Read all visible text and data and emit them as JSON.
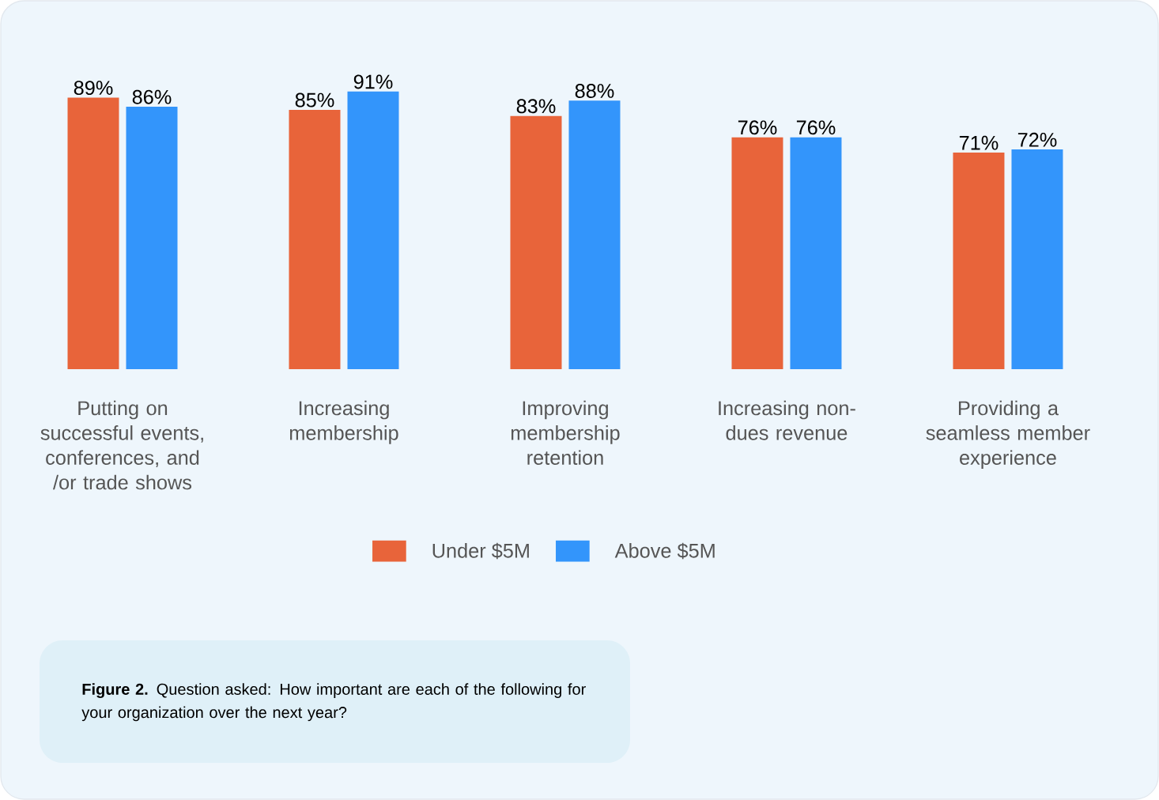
{
  "chart_data": {
    "type": "bar",
    "categories": [
      "Putting on successful events, conferences, and /or trade shows",
      "Increasing membership",
      "Improving membership retention",
      "Increasing non-dues revenue",
      "Providing a seamless member experience"
    ],
    "series": [
      {
        "name": "Under $5M",
        "color": "#e8643a",
        "values": [
          89,
          85,
          83,
          76,
          71
        ],
        "value_labels": [
          "89%",
          "85%",
          "83%",
          "76%",
          "71%"
        ]
      },
      {
        "name": "Above $5M",
        "color": "#3395fb",
        "values": [
          86,
          91,
          88,
          76,
          72
        ],
        "value_labels": [
          "86%",
          "91%",
          "88%",
          "76%",
          "72%"
        ]
      }
    ],
    "legend": "bottom",
    "annotations": [
      "**Figure 2.** Question asked: How important are each of the following for your organization over the next year?"
    ]
  }
}
